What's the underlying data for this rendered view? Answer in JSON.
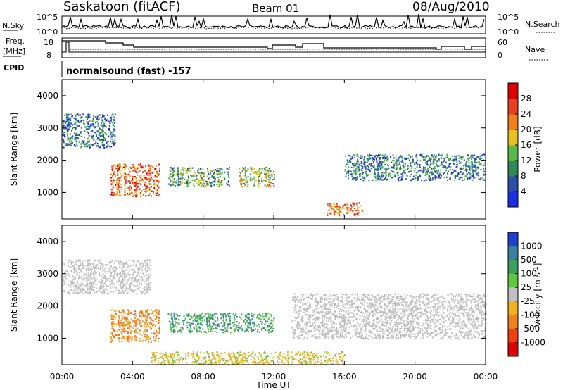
{
  "header": {
    "station": "Saskatoon (fitACF)",
    "beam": "Beam 01",
    "date": "08/Aug/2010"
  },
  "top_panels": {
    "nsky_label": "N.Sky",
    "nsky_tick_hi": "10^5",
    "nsky_tick_lo": "10^0",
    "nsearch_label": "N.Search",
    "freq_label_1": "Freq.",
    "freq_label_2": "[MHz]",
    "freq_tick_hi": "18",
    "freq_tick_lo": "8",
    "nave_tick_hi": "60",
    "nave_tick_lo": "0",
    "nave_label": "Nave",
    "cpid_label": "CPID",
    "cpid_text": "normalsound (fast) -157"
  },
  "chart_data": [
    {
      "type": "heatmap",
      "panel": "power",
      "ylabel": "Slant Range [km]",
      "ylim": [
        180,
        4500
      ],
      "yticks": [
        "1000",
        "2000",
        "3000",
        "4000"
      ],
      "colorbar_label": "Power [dB]",
      "colorbar_ticks": [
        "4",
        "8",
        "12",
        "16",
        "20",
        "24",
        "28"
      ],
      "colorbar_colors": [
        "#1a2fe0",
        "#2b4ea8",
        "#2e8a5a",
        "#5ab84a",
        "#e8c020",
        "#f08020",
        "#e84020",
        "#e00000"
      ],
      "scatter_regions_approx": [
        {
          "t_start": "00:00",
          "t_end": "03:00",
          "range_km": [
            2400,
            3450
          ],
          "level_db": "4-12"
        },
        {
          "t_start": "02:45",
          "t_end": "05:30",
          "range_km": [
            900,
            1900
          ],
          "level_db": "20-28"
        },
        {
          "t_start": "06:00",
          "t_end": "09:30",
          "range_km": [
            1200,
            1800
          ],
          "level_db": "12-20"
        },
        {
          "t_start": "10:00",
          "t_end": "12:00",
          "range_km": [
            1200,
            1800
          ],
          "level_db": "16-24"
        },
        {
          "t_start": "15:00",
          "t_end": "17:00",
          "range_km": [
            300,
            700
          ],
          "level_db": "20-28"
        },
        {
          "t_start": "16:00",
          "t_end": "24:00",
          "range_km": [
            1400,
            2200
          ],
          "level_db": "8-16"
        }
      ]
    },
    {
      "type": "heatmap",
      "panel": "velocity",
      "ylabel": "Slant Range [km]",
      "ylim": [
        180,
        4500
      ],
      "yticks": [
        "1000",
        "2000",
        "3000",
        "4000"
      ],
      "colorbar_label": "Velocity [m s",
      "colorbar_sup": "-1",
      "colorbar_label_end": "]",
      "colorbar_ticks": [
        "1000",
        "500",
        "100",
        "25",
        "-25",
        "-100",
        "-500",
        "-1000"
      ],
      "colorbar_colors": [
        "#2040d0",
        "#3a80a0",
        "#3aa060",
        "#60c840",
        "#c0c0c0",
        "#f0b020",
        "#f08020",
        "#f04010",
        "#e00000"
      ],
      "scatter_regions_approx": [
        {
          "t_start": "00:00",
          "t_end": "05:00",
          "range_km": [
            2400,
            3450
          ],
          "velocity": "-25 to 25"
        },
        {
          "t_start": "02:45",
          "t_end": "05:30",
          "range_km": [
            900,
            1900
          ],
          "velocity": "-100 to -500"
        },
        {
          "t_start": "06:00",
          "t_end": "12:00",
          "range_km": [
            1200,
            1800
          ],
          "velocity": "25 to 500"
        },
        {
          "t_start": "05:00",
          "t_end": "16:00",
          "range_km": [
            200,
            600
          ],
          "velocity": "-25 to -100"
        },
        {
          "t_start": "13:00",
          "t_end": "24:00",
          "range_km": [
            1000,
            2400
          ],
          "velocity": "-25 to 25"
        }
      ]
    }
  ],
  "x_axis": {
    "label": "Time UT",
    "ticks": [
      "00:00",
      "04:00",
      "08:00",
      "12:00",
      "16:00",
      "20:00",
      "00:00"
    ]
  }
}
